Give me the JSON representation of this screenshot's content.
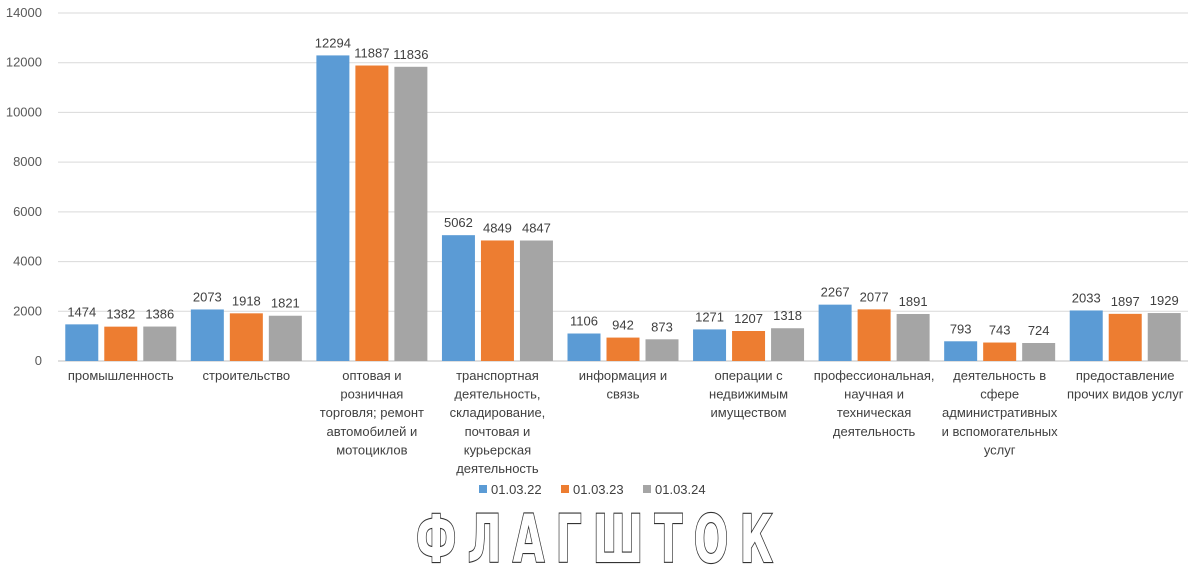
{
  "chart_data": {
    "type": "bar",
    "categories": [
      "промышленность",
      "строительство",
      "оптовая и розничная торговля; ремонт автомобилей и мотоциклов",
      "транспортная деятельность, складирование, почтовая и курьерская деятельность",
      "информация и связь",
      "операции с недвижимым имуществом",
      "профессиональная, научная и техническая деятельность",
      "деятельность в сфере административных и вспомогательных услуг",
      "предоставление прочих видов услуг"
    ],
    "category_lines": [
      [
        "промышленность"
      ],
      [
        "строительство"
      ],
      [
        "оптовая и",
        "розничная",
        "торговля; ремонт",
        "автомобилей и",
        "мотоциклов"
      ],
      [
        "транспортная",
        "деятельность,",
        "складирование,",
        "почтовая и",
        "курьерская",
        "деятельность"
      ],
      [
        "информация и",
        "связь"
      ],
      [
        "операции с",
        "недвижимым",
        "имуществом"
      ],
      [
        "профессиональная,",
        "научная и",
        "техническая",
        "деятельность"
      ],
      [
        "деятельность в",
        "сфере",
        "административных",
        "и вспомогательных",
        "услуг"
      ],
      [
        "предоставление",
        "прочих видов услуг"
      ]
    ],
    "series": [
      {
        "name": "01.03.22",
        "color": "#5b9bd5",
        "values": [
          1474,
          2073,
          12294,
          5062,
          1106,
          1271,
          2267,
          793,
          2033
        ]
      },
      {
        "name": "01.03.23",
        "color": "#ed7d31",
        "values": [
          1382,
          1918,
          11887,
          4849,
          942,
          1207,
          2077,
          743,
          1897
        ]
      },
      {
        "name": "01.03.24",
        "color": "#a5a5a5",
        "values": [
          1386,
          1821,
          11836,
          4847,
          873,
          1318,
          1891,
          724,
          1929
        ]
      }
    ],
    "ylim": [
      0,
      14000
    ],
    "yticks": [
      0,
      2000,
      4000,
      6000,
      8000,
      10000,
      12000,
      14000
    ],
    "grid": true,
    "legend_position": "bottom",
    "xlabel": "",
    "ylabel": "",
    "title": ""
  },
  "logo": {
    "text": "ФЛАГШТОК",
    "color": "#ffffff",
    "outline": "#333333"
  }
}
